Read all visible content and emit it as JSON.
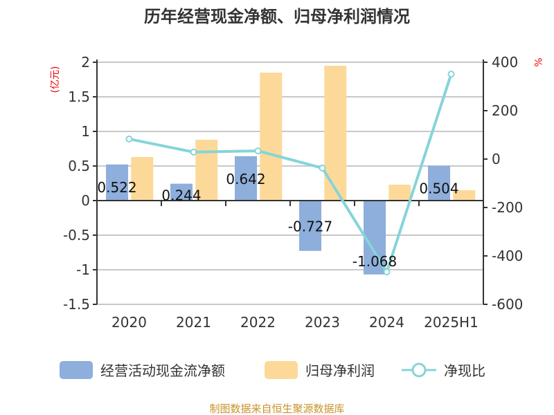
{
  "chart_data": {
    "type": "bar+line",
    "title": "历年经营现金净额、归母净利润情况",
    "categories": [
      "2020",
      "2021",
      "2022",
      "2023",
      "2024",
      "2025H1"
    ],
    "left_axis": {
      "unit": "(亿元)",
      "ylim": [
        -1.5,
        2
      ],
      "ticks": [
        "2",
        "1.5",
        "1",
        "0.5",
        "0",
        "-0.5",
        "-1",
        "-1.5"
      ]
    },
    "right_axis": {
      "unit": "%",
      "ylim": [
        -600,
        400
      ],
      "ticks": [
        "400",
        "200",
        "0",
        "-200",
        "-400",
        "-600"
      ]
    },
    "series": [
      {
        "name": "经营活动现金流净额",
        "type": "bar",
        "axis": "left",
        "color": "#8eaedb",
        "values": [
          0.522,
          0.244,
          0.642,
          -0.727,
          -1.068,
          0.504
        ],
        "labels": [
          "0.522",
          "0.244",
          "0.642",
          "-0.727",
          "-1.068",
          "0.504"
        ]
      },
      {
        "name": "归母净利润",
        "type": "bar",
        "axis": "left",
        "color": "#fdd999",
        "values": [
          0.63,
          0.88,
          1.85,
          1.95,
          0.23,
          0.15
        ]
      },
      {
        "name": "净现比",
        "type": "line",
        "axis": "right",
        "color": "#86d4d8",
        "values": [
          83,
          29,
          34,
          -37,
          -466,
          351
        ]
      }
    ],
    "grid": true,
    "legend": "bottom",
    "source": "制图数据来自恒生聚源数据库"
  }
}
